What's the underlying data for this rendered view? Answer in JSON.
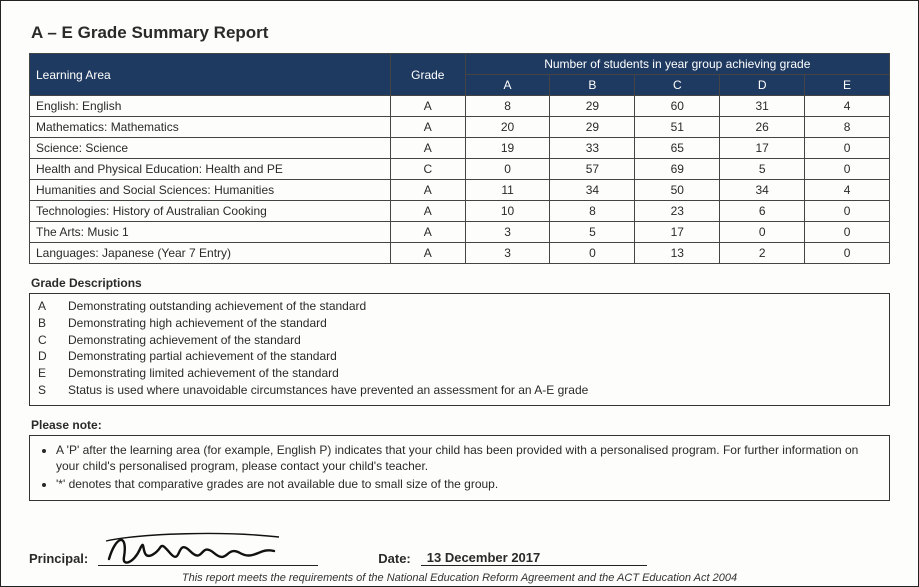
{
  "title": "A – E Grade Summary Report",
  "headers": {
    "learningArea": "Learning Area",
    "grade": "Grade",
    "numberOfStudents": "Number of students in year group achieving grade",
    "cols": [
      "A",
      "B",
      "C",
      "D",
      "E"
    ]
  },
  "rows": [
    {
      "area": "English: English",
      "grade": "A",
      "counts": [
        "8",
        "29",
        "60",
        "31",
        "4"
      ]
    },
    {
      "area": "Mathematics: Mathematics",
      "grade": "A",
      "counts": [
        "20",
        "29",
        "51",
        "26",
        "8"
      ]
    },
    {
      "area": "Science: Science",
      "grade": "A",
      "counts": [
        "19",
        "33",
        "65",
        "17",
        "0"
      ]
    },
    {
      "area": "Health and Physical Education: Health and PE",
      "grade": "C",
      "counts": [
        "0",
        "57",
        "69",
        "5",
        "0"
      ]
    },
    {
      "area": "Humanities and Social Sciences: Humanities",
      "grade": "A",
      "counts": [
        "11",
        "34",
        "50",
        "34",
        "4"
      ]
    },
    {
      "area": "Technologies: History of Australian Cooking",
      "grade": "A",
      "counts": [
        "10",
        "8",
        "23",
        "6",
        "0"
      ]
    },
    {
      "area": "The Arts: Music 1",
      "grade": "A",
      "counts": [
        "3",
        "5",
        "17",
        "0",
        "0"
      ]
    },
    {
      "area": "Languages: Japanese (Year 7 Entry)",
      "grade": "A",
      "counts": [
        "3",
        "0",
        "13",
        "2",
        "0"
      ]
    }
  ],
  "gradeDescLabel": "Grade Descriptions",
  "gradeDescriptions": [
    {
      "code": "A",
      "text": "Demonstrating outstanding achievement of the standard"
    },
    {
      "code": "B",
      "text": "Demonstrating high achievement of the standard"
    },
    {
      "code": "C",
      "text": "Demonstrating achievement of the standard"
    },
    {
      "code": "D",
      "text": "Demonstrating partial achievement of the standard"
    },
    {
      "code": "E",
      "text": "Demonstrating limited achievement of the standard"
    },
    {
      "code": "S",
      "text": "Status is used where unavoidable circumstances have prevented an assessment for an A-E grade"
    }
  ],
  "pleaseNoteLabel": "Please note:",
  "notes": [
    "A 'P' after the learning area (for example, English P) indicates that your child has been provided with a personalised program. For further information on your child's personalised program, please contact your child's teacher.",
    "'*' denotes that comparative grades are not available due to small size of the group."
  ],
  "principalLabel": "Principal:",
  "dateLabel": "Date:",
  "dateValue": "13 December 2017",
  "footerNote": "This report meets the requirements of the National Education Reform Agreement and the ACT Education Act 2004",
  "colors": {
    "headerBg": "#1f3a60",
    "headerText": "#ffffff",
    "border": "#444444",
    "pageBg": "#fdfdfb"
  }
}
